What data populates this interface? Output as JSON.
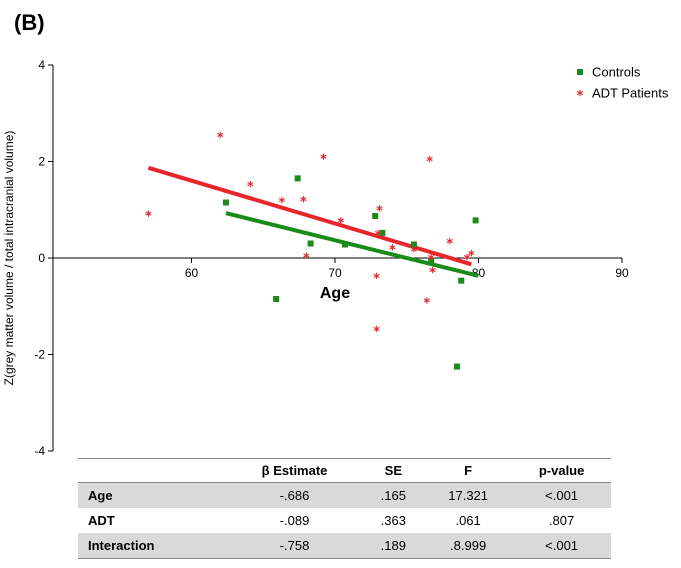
{
  "panel_label": "(B)",
  "chart_data": {
    "type": "scatter",
    "xlabel": "Age",
    "ylabel": "Z(grey matter volume / total intracranial volume)",
    "xlim": [
      50,
      90
    ],
    "ylim": [
      -4,
      4
    ],
    "xticks": [
      60,
      70,
      80,
      90
    ],
    "yticks": [
      -4,
      -2,
      0,
      2,
      4
    ],
    "legend_position": "top-right",
    "series": [
      {
        "name": "Controls",
        "marker": "square",
        "color": "#1a8a1a",
        "points": [
          [
            62.4,
            1.15
          ],
          [
            65.9,
            -0.85
          ],
          [
            67.4,
            1.65
          ],
          [
            68.3,
            0.3
          ],
          [
            70.7,
            0.28
          ],
          [
            72.8,
            0.87
          ],
          [
            73.3,
            0.52
          ],
          [
            75.5,
            0.28
          ],
          [
            76.7,
            -0.05
          ],
          [
            78.5,
            -2.25
          ],
          [
            78.8,
            -0.47
          ],
          [
            79.8,
            0.78
          ]
        ],
        "fit": [
          [
            62.4,
            0.93
          ],
          [
            80.0,
            -0.37
          ]
        ]
      },
      {
        "name": "ADT Patients",
        "marker": "asterisk",
        "color": "#e8252a",
        "points": [
          [
            57.0,
            0.92
          ],
          [
            62.0,
            2.55
          ],
          [
            64.1,
            1.53
          ],
          [
            66.3,
            1.2
          ],
          [
            67.8,
            1.22
          ],
          [
            68.0,
            0.05
          ],
          [
            69.2,
            2.1
          ],
          [
            70.4,
            0.78
          ],
          [
            72.9,
            -0.37
          ],
          [
            73.0,
            0.52
          ],
          [
            73.1,
            1.03
          ],
          [
            72.9,
            -1.47
          ],
          [
            74.0,
            0.22
          ],
          [
            75.5,
            0.18
          ],
          [
            76.4,
            -0.88
          ],
          [
            76.6,
            2.05
          ],
          [
            76.8,
            -0.25
          ],
          [
            76.7,
            0.02
          ],
          [
            78.0,
            0.35
          ],
          [
            79.2,
            0.02
          ],
          [
            79.5,
            0.1
          ]
        ],
        "fit": [
          [
            57.0,
            1.87
          ],
          [
            79.5,
            -0.13
          ]
        ]
      }
    ]
  },
  "table": {
    "headers": [
      "",
      "β Estimate",
      "SE",
      "F",
      "p-value"
    ],
    "rows": [
      {
        "name": "Age",
        "values": [
          "-.686",
          ".165",
          "17.321",
          "<.001"
        ]
      },
      {
        "name": "ADT",
        "values": [
          "-.089",
          ".363",
          ".061",
          ".807"
        ]
      },
      {
        "name": "Interaction",
        "values": [
          "-.758",
          ".189",
          ".8.999",
          "<.001"
        ]
      }
    ]
  }
}
